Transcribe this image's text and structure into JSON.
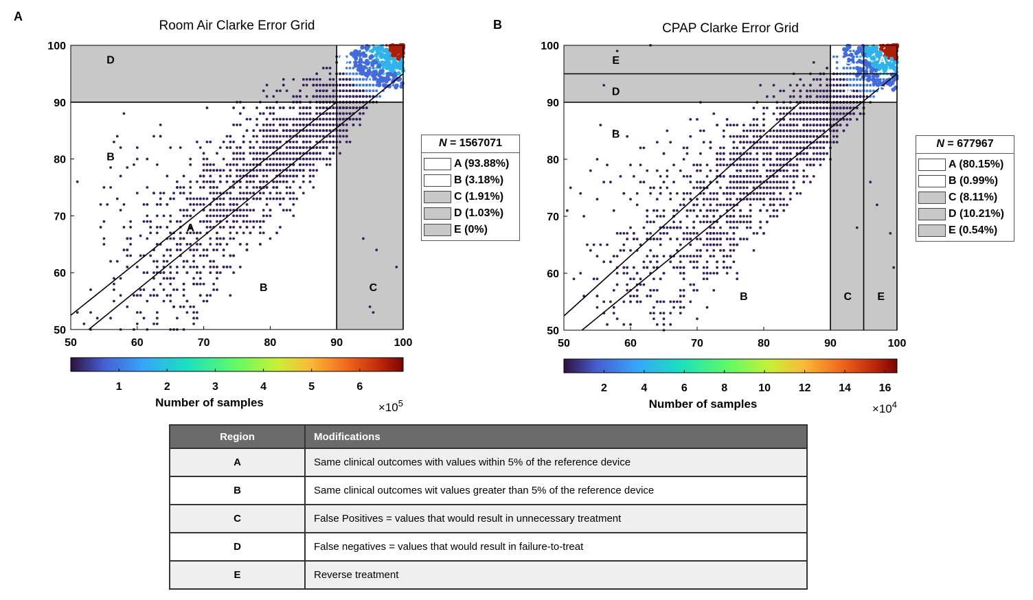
{
  "panels": [
    {
      "letter": "A",
      "title": "Room Air Clarke Error Grid",
      "n_label": "N",
      "n_value": "= 1567071",
      "legend": [
        {
          "label": "A (93.88%)",
          "color": "#ffffff"
        },
        {
          "label": "B (3.18%)",
          "color": "#ffffff"
        },
        {
          "label": "C (1.91%)",
          "color": "#c8c8c8"
        },
        {
          "label": "D (1.03%)",
          "color": "#c8c8c8"
        },
        {
          "label": "E (0%)",
          "color": "#c8c8c8"
        }
      ],
      "colorbar_label": "Number of samples",
      "colorbar_ticks": [
        "1",
        "2",
        "3",
        "4",
        "5",
        "6"
      ],
      "colorbar_exponent_base": "×10",
      "colorbar_exponent": "5"
    },
    {
      "letter": "B",
      "title": "CPAP Clarke Error Grid",
      "n_label": "N",
      "n_value": "= 677967",
      "legend": [
        {
          "label": "A (80.15%)",
          "color": "#ffffff"
        },
        {
          "label": "B (0.99%)",
          "color": "#ffffff"
        },
        {
          "label": "C (8.11%)",
          "color": "#c8c8c8"
        },
        {
          "label": "D (10.21%)",
          "color": "#c8c8c8"
        },
        {
          "label": "E (0.54%)",
          "color": "#c8c8c8"
        }
      ],
      "colorbar_label": "Number of samples",
      "colorbar_ticks": [
        "2",
        "4",
        "6",
        "8",
        "10",
        "12",
        "14",
        "16"
      ],
      "colorbar_exponent_base": "×10",
      "colorbar_exponent": "4"
    }
  ],
  "chart_data": [
    {
      "type": "scatter",
      "title": "Room Air Clarke Error Grid",
      "xlim": [
        50,
        100
      ],
      "ylim": [
        50,
        100
      ],
      "xticks": [
        50,
        60,
        70,
        80,
        90,
        100
      ],
      "yticks": [
        50,
        60,
        70,
        80,
        90,
        100
      ],
      "grid": false,
      "shaded_regions": [
        {
          "region": "D",
          "x": [
            50,
            90
          ],
          "y": [
            90,
            100
          ]
        },
        {
          "region": "C",
          "x": [
            90,
            100
          ],
          "y": [
            50,
            90
          ]
        }
      ],
      "region_lines": [
        {
          "x": [
            50,
            90
          ],
          "y": [
            52.5,
            90
          ]
        },
        {
          "x": [
            52.7,
            100
          ],
          "y": [
            50,
            95
          ]
        },
        {
          "x": [
            50,
            100
          ],
          "y": [
            90,
            90
          ]
        },
        {
          "x": [
            90,
            90
          ],
          "y": [
            50,
            100
          ]
        },
        {
          "x": [
            100,
            100
          ],
          "y": [
            50,
            100
          ]
        }
      ],
      "region_labels": [
        {
          "text": "D",
          "x": 56,
          "y": 97.5,
          "color": "#000000"
        },
        {
          "text": "B",
          "x": 56,
          "y": 80.5,
          "color": "#000000"
        },
        {
          "text": "A",
          "x": 68,
          "y": 68,
          "color": "#000000"
        },
        {
          "text": "B",
          "x": 79,
          "y": 57.5,
          "color": "#000000"
        },
        {
          "text": "C",
          "x": 95.5,
          "y": 57.5,
          "color": "#000000"
        },
        {
          "text": "B",
          "x": 91,
          "y": 97.5,
          "color": "#ffffff"
        },
        {
          "text": "A",
          "x": 95,
          "y": 94,
          "color": "#ffffff"
        },
        {
          "text": "B",
          "x": 99,
          "y": 91.5,
          "color": "#ffffff"
        }
      ],
      "colorbar": {
        "min": 0,
        "max": 690000,
        "ticks": [
          100000,
          200000,
          300000,
          400000,
          500000,
          600000
        ],
        "label": "Number of samples"
      },
      "density_peak": {
        "x": 99,
        "y": 99
      },
      "isolated_points": [
        [
          51,
          76
        ],
        [
          56,
          75
        ],
        [
          55.5,
          72
        ],
        [
          57,
          73
        ],
        [
          57.5,
          71
        ],
        [
          56,
          78.5
        ],
        [
          57.5,
          82
        ],
        [
          58.5,
          78.5
        ],
        [
          59,
          69
        ],
        [
          60.5,
          66.5
        ],
        [
          62.5,
          74
        ],
        [
          58,
          88
        ],
        [
          56.5,
          83
        ],
        [
          57,
          84
        ],
        [
          63.5,
          86
        ],
        [
          79,
          67
        ],
        [
          81,
          67
        ],
        [
          94,
          66
        ],
        [
          95,
          54
        ],
        [
          95.5,
          53
        ],
        [
          99,
          61
        ],
        [
          96,
          64
        ]
      ]
    },
    {
      "type": "scatter",
      "title": "CPAP Clarke Error Grid",
      "xlim": [
        50,
        100
      ],
      "ylim": [
        50,
        100
      ],
      "xticks": [
        50,
        60,
        70,
        80,
        90,
        100
      ],
      "yticks": [
        50,
        60,
        70,
        80,
        90,
        100
      ],
      "grid": false,
      "shaded_regions": [
        {
          "region": "E",
          "x": [
            50,
            90
          ],
          "y": [
            95,
            100
          ]
        },
        {
          "region": "D",
          "x": [
            50,
            90
          ],
          "y": [
            90,
            95
          ]
        },
        {
          "region": "C",
          "x": [
            90,
            95
          ],
          "y": [
            50,
            90
          ]
        },
        {
          "region": "E",
          "x": [
            95,
            100
          ],
          "y": [
            50,
            90
          ]
        }
      ],
      "region_lines": [
        {
          "x": [
            50,
            85.5
          ],
          "y": [
            52.5,
            90
          ]
        },
        {
          "x": [
            52.7,
            100
          ],
          "y": [
            50,
            95
          ]
        },
        {
          "x": [
            50,
            100
          ],
          "y": [
            90,
            90
          ]
        },
        {
          "x": [
            50,
            100
          ],
          "y": [
            95,
            95
          ]
        },
        {
          "x": [
            90,
            90
          ],
          "y": [
            50,
            100
          ]
        },
        {
          "x": [
            95,
            95
          ],
          "y": [
            50,
            100
          ]
        },
        {
          "x": [
            100,
            100
          ],
          "y": [
            50,
            100
          ]
        }
      ],
      "region_labels": [
        {
          "text": "E",
          "x": 57.8,
          "y": 97.5,
          "color": "#000000"
        },
        {
          "text": "D",
          "x": 57.8,
          "y": 92,
          "color": "#000000"
        },
        {
          "text": "B",
          "x": 57.8,
          "y": 84.5,
          "color": "#000000"
        },
        {
          "text": "B",
          "x": 77,
          "y": 56,
          "color": "#000000"
        },
        {
          "text": "C",
          "x": 92.6,
          "y": 56,
          "color": "#000000"
        },
        {
          "text": "E",
          "x": 97.6,
          "y": 56,
          "color": "#000000"
        },
        {
          "text": "C",
          "x": 92.7,
          "y": 97.5,
          "color": "#ffffff"
        },
        {
          "text": "A",
          "x": 97.8,
          "y": 97.5,
          "color": "#ffffff"
        },
        {
          "text": "A",
          "x": 92.7,
          "y": 92.2,
          "color": "#ffffff"
        },
        {
          "text": "D",
          "x": 97.8,
          "y": 92.2,
          "color": "#ffffff"
        }
      ],
      "colorbar": {
        "min": 0,
        "max": 166000,
        "ticks": [
          20000,
          40000,
          60000,
          80000,
          100000,
          120000,
          140000,
          160000
        ],
        "label": "Number of samples"
      },
      "density_peak": {
        "x": 99,
        "y": 99
      },
      "isolated_points": [
        [
          50.5,
          71
        ],
        [
          51,
          75
        ],
        [
          52.5,
          74
        ],
        [
          53,
          70
        ],
        [
          54.5,
          65
        ],
        [
          55,
          73
        ],
        [
          56,
          76
        ],
        [
          56.5,
          79
        ],
        [
          57.5,
          85
        ],
        [
          58.5,
          77
        ],
        [
          59,
          74
        ],
        [
          61,
          72
        ],
        [
          62,
          82
        ],
        [
          64,
          83
        ],
        [
          65,
          81
        ],
        [
          55.5,
          86
        ],
        [
          56,
          93
        ],
        [
          58,
          99
        ],
        [
          63,
          100
        ],
        [
          99,
          67
        ],
        [
          99.5,
          61
        ],
        [
          97,
          72
        ],
        [
          96,
          76
        ],
        [
          94,
          68
        ]
      ]
    }
  ],
  "table": {
    "headers": [
      "Region",
      "Modifications"
    ],
    "rows": [
      {
        "region": "A",
        "text": "Same clinical outcomes with values within 5% of the reference device"
      },
      {
        "region": "B",
        "text": "Same clinical outcomes wit values greater than 5% of the reference device"
      },
      {
        "region": "C",
        "text": "False Positives = values that would result in unnecessary treatment"
      },
      {
        "region": "D",
        "text": "False negatives = values that would result in failure-to-treat"
      },
      {
        "region": "E",
        "text": "Reverse treatment"
      }
    ]
  }
}
